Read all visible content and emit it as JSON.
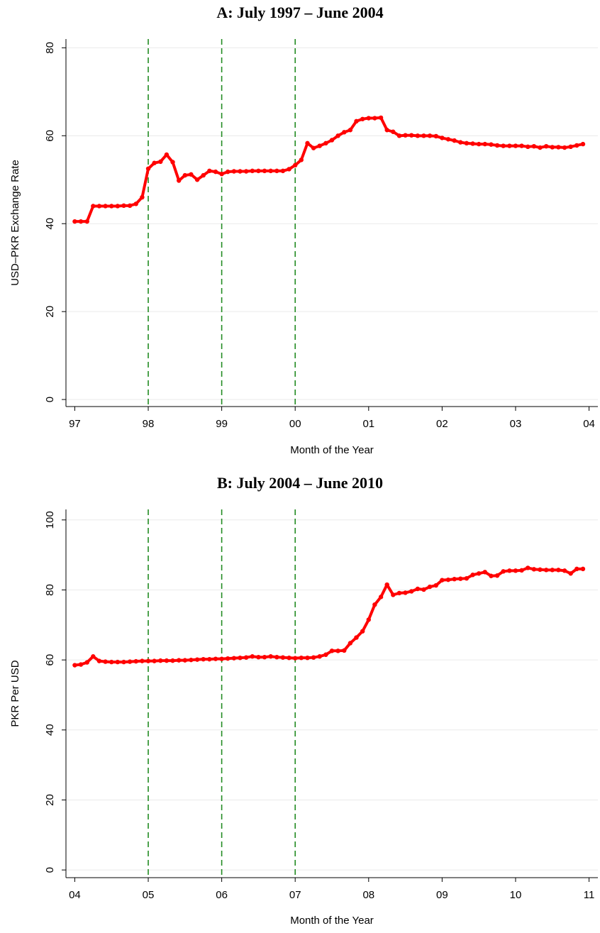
{
  "chart_data": [
    {
      "type": "line",
      "title": "A: July 1997 – June 2004",
      "xlabel": "Month of the Year",
      "ylabel": "USD–PKR Exchange Rate",
      "color": "#ff0000",
      "grid": true,
      "vlines": [
        1998,
        1999,
        2000
      ],
      "vline_color": "#228b22",
      "xlim": [
        1996.88,
        2004.12
      ],
      "ylim": [
        -1.6,
        82
      ],
      "xticks": [
        {
          "value": 1997,
          "label": "97"
        },
        {
          "value": 1998,
          "label": "98"
        },
        {
          "value": 1999,
          "label": "99"
        },
        {
          "value": 2000,
          "label": "00"
        },
        {
          "value": 2001,
          "label": "01"
        },
        {
          "value": 2002,
          "label": "02"
        },
        {
          "value": 2003,
          "label": "03"
        },
        {
          "value": 2004,
          "label": "04"
        }
      ],
      "yticks": [
        0,
        20,
        40,
        60,
        80
      ],
      "x": [
        1997.0,
        1997.083,
        1997.167,
        1997.25,
        1997.333,
        1997.417,
        1997.5,
        1997.583,
        1997.667,
        1997.75,
        1997.833,
        1997.917,
        1998.0,
        1998.083,
        1998.167,
        1998.25,
        1998.333,
        1998.417,
        1998.5,
        1998.583,
        1998.667,
        1998.75,
        1998.833,
        1998.917,
        1999.0,
        1999.083,
        1999.167,
        1999.25,
        1999.333,
        1999.417,
        1999.5,
        1999.583,
        1999.667,
        1999.75,
        1999.833,
        1999.917,
        2000.0,
        2000.083,
        2000.167,
        2000.25,
        2000.333,
        2000.417,
        2000.5,
        2000.583,
        2000.667,
        2000.75,
        2000.833,
        2000.917,
        2001.0,
        2001.083,
        2001.167,
        2001.25,
        2001.333,
        2001.417,
        2001.5,
        2001.583,
        2001.667,
        2001.75,
        2001.833,
        2001.917,
        2002.0,
        2002.083,
        2002.167,
        2002.25,
        2002.333,
        2002.417,
        2002.5,
        2002.583,
        2002.667,
        2002.75,
        2002.833,
        2002.917,
        2003.0,
        2003.083,
        2003.167,
        2003.25,
        2003.333,
        2003.417,
        2003.5,
        2003.583,
        2003.667,
        2003.75,
        2003.833,
        2003.917
      ],
      "values": [
        40.5,
        40.5,
        40.5,
        44,
        44,
        44,
        44,
        44,
        44.1,
        44.1,
        44.5,
        46,
        52.5,
        53.8,
        54.1,
        55.7,
        54,
        49.8,
        51,
        51.2,
        50,
        51,
        52,
        51.8,
        51.3,
        51.8,
        51.9,
        51.9,
        51.9,
        52,
        52,
        52,
        52,
        52,
        52,
        52.4,
        53.3,
        54.5,
        58.3,
        57.2,
        57.7,
        58.3,
        59,
        60,
        60.8,
        61.3,
        63.3,
        63.8,
        64,
        64,
        64.1,
        61.3,
        60.9,
        60,
        60.1,
        60.1,
        60,
        60,
        60,
        59.9,
        59.5,
        59.2,
        58.9,
        58.5,
        58.3,
        58.2,
        58.1,
        58.1,
        58,
        57.8,
        57.7,
        57.7,
        57.7,
        57.7,
        57.5,
        57.6,
        57.3,
        57.6,
        57.4,
        57.4,
        57.3,
        57.5,
        57.8,
        58.1
      ]
    },
    {
      "type": "line",
      "title": "B: July 2004 – June 2010",
      "xlabel": "Month of the Year",
      "ylabel": "PKR Per USD",
      "color": "#ff0000",
      "grid": true,
      "vlines": [
        2005,
        2006,
        2007
      ],
      "vline_color": "#228b22",
      "xlim": [
        2003.88,
        2011.12
      ],
      "ylim": [
        -2.2,
        103
      ],
      "xticks": [
        {
          "value": 2004,
          "label": "04"
        },
        {
          "value": 2005,
          "label": "05"
        },
        {
          "value": 2006,
          "label": "06"
        },
        {
          "value": 2007,
          "label": "07"
        },
        {
          "value": 2008,
          "label": "08"
        },
        {
          "value": 2009,
          "label": "09"
        },
        {
          "value": 2010,
          "label": "10"
        },
        {
          "value": 2011,
          "label": "11"
        }
      ],
      "yticks": [
        0,
        20,
        40,
        60,
        80,
        100
      ],
      "x": [
        2004.0,
        2004.083,
        2004.167,
        2004.25,
        2004.333,
        2004.417,
        2004.5,
        2004.583,
        2004.667,
        2004.75,
        2004.833,
        2004.917,
        2005.0,
        2005.083,
        2005.167,
        2005.25,
        2005.333,
        2005.417,
        2005.5,
        2005.583,
        2005.667,
        2005.75,
        2005.833,
        2005.917,
        2006.0,
        2006.083,
        2006.167,
        2006.25,
        2006.333,
        2006.417,
        2006.5,
        2006.583,
        2006.667,
        2006.75,
        2006.833,
        2006.917,
        2007.0,
        2007.083,
        2007.167,
        2007.25,
        2007.333,
        2007.417,
        2007.5,
        2007.583,
        2007.667,
        2007.75,
        2007.833,
        2007.917,
        2008.0,
        2008.083,
        2008.167,
        2008.25,
        2008.333,
        2008.417,
        2008.5,
        2008.583,
        2008.667,
        2008.75,
        2008.833,
        2008.917,
        2009.0,
        2009.083,
        2009.167,
        2009.25,
        2009.333,
        2009.417,
        2009.5,
        2009.583,
        2009.667,
        2009.75,
        2009.833,
        2009.917,
        2010.0,
        2010.083,
        2010.167,
        2010.25,
        2010.333,
        2010.417,
        2010.5,
        2010.583,
        2010.667,
        2010.75,
        2010.833,
        2010.917
      ],
      "values": [
        58.5,
        58.7,
        59.3,
        61,
        59.7,
        59.5,
        59.4,
        59.4,
        59.4,
        59.5,
        59.6,
        59.7,
        59.7,
        59.7,
        59.8,
        59.8,
        59.8,
        59.9,
        59.9,
        60,
        60.1,
        60.2,
        60.2,
        60.3,
        60.3,
        60.4,
        60.5,
        60.6,
        60.7,
        61,
        60.8,
        60.8,
        61,
        60.8,
        60.7,
        60.6,
        60.5,
        60.6,
        60.6,
        60.7,
        61,
        61.5,
        62.6,
        62.6,
        62.7,
        64.8,
        66.4,
        68.2,
        71.5,
        75.8,
        78,
        81.5,
        78.6,
        79.1,
        79.2,
        79.6,
        80.3,
        80.1,
        80.9,
        81.3,
        82.8,
        82.9,
        83.1,
        83.2,
        83.3,
        84.3,
        84.7,
        85.1,
        84,
        84.1,
        85.3,
        85.5,
        85.5,
        85.6,
        86.3,
        85.9,
        85.8,
        85.7,
        85.7,
        85.7,
        85.5,
        84.7,
        86,
        86
      ]
    }
  ]
}
